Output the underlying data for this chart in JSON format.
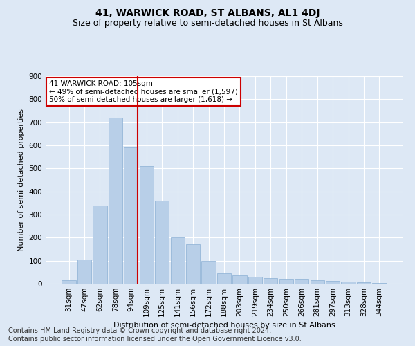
{
  "title": "41, WARWICK ROAD, ST ALBANS, AL1 4DJ",
  "subtitle": "Size of property relative to semi-detached houses in St Albans",
  "xlabel": "Distribution of semi-detached houses by size in St Albans",
  "ylabel": "Number of semi-detached properties",
  "categories": [
    "31sqm",
    "47sqm",
    "62sqm",
    "78sqm",
    "94sqm",
    "109sqm",
    "125sqm",
    "141sqm",
    "156sqm",
    "172sqm",
    "188sqm",
    "203sqm",
    "219sqm",
    "234sqm",
    "250sqm",
    "266sqm",
    "281sqm",
    "297sqm",
    "313sqm",
    "328sqm",
    "344sqm"
  ],
  "values": [
    15,
    105,
    340,
    720,
    590,
    510,
    360,
    200,
    170,
    100,
    45,
    35,
    30,
    25,
    20,
    20,
    15,
    12,
    10,
    5,
    3
  ],
  "bar_color": "#b8cfe8",
  "bar_edge_color": "#8aafd4",
  "vline_index": 4,
  "vline_color": "#cc0000",
  "annotation_text": "41 WARWICK ROAD: 105sqm\n← 49% of semi-detached houses are smaller (1,597)\n50% of semi-detached houses are larger (1,618) →",
  "annotation_box_facecolor": "#ffffff",
  "annotation_box_edgecolor": "#cc0000",
  "ylim": [
    0,
    900
  ],
  "yticks": [
    0,
    100,
    200,
    300,
    400,
    500,
    600,
    700,
    800,
    900
  ],
  "bg_color": "#dde8f5",
  "plot_bg_color": "#dde8f5",
  "grid_color": "#ffffff",
  "title_fontsize": 10,
  "subtitle_fontsize": 9,
  "axis_label_fontsize": 8,
  "tick_fontsize": 7.5,
  "annotation_fontsize": 7.5,
  "footnote_fontsize": 7,
  "footnote": "Contains HM Land Registry data © Crown copyright and database right 2024.\nContains public sector information licensed under the Open Government Licence v3.0."
}
